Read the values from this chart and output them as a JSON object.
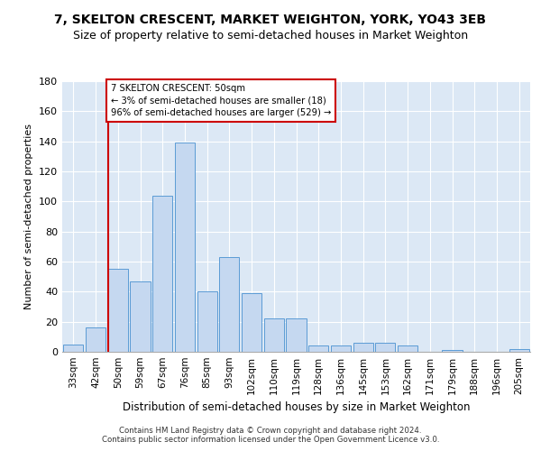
{
  "title": "7, SKELTON CRESCENT, MARKET WEIGHTON, YORK, YO43 3EB",
  "subtitle": "Size of property relative to semi-detached houses in Market Weighton",
  "xlabel": "Distribution of semi-detached houses by size in Market Weighton",
  "ylabel": "Number of semi-detached properties",
  "categories": [
    "33sqm",
    "42sqm",
    "50sqm",
    "59sqm",
    "67sqm",
    "76sqm",
    "85sqm",
    "93sqm",
    "102sqm",
    "110sqm",
    "119sqm",
    "128sqm",
    "136sqm",
    "145sqm",
    "153sqm",
    "162sqm",
    "171sqm",
    "179sqm",
    "188sqm",
    "196sqm",
    "205sqm"
  ],
  "values": [
    5,
    16,
    55,
    47,
    104,
    139,
    40,
    63,
    39,
    22,
    22,
    4,
    4,
    6,
    6,
    4,
    0,
    1,
    0,
    0,
    2
  ],
  "bar_color": "#c5d8f0",
  "bar_edge_color": "#5b9bd5",
  "vline_x_index": 2,
  "annotation_line1": "7 SKELTON CRESCENT: 50sqm",
  "annotation_line2": "← 3% of semi-detached houses are smaller (18)",
  "annotation_line3": "96% of semi-detached houses are larger (529) →",
  "annotation_box_color": "#ffffff",
  "annotation_box_edge": "#cc0000",
  "vline_color": "#cc0000",
  "ylim": [
    0,
    180
  ],
  "yticks": [
    0,
    20,
    40,
    60,
    80,
    100,
    120,
    140,
    160,
    180
  ],
  "background_color": "#dce8f5",
  "footer_line1": "Contains HM Land Registry data © Crown copyright and database right 2024.",
  "footer_line2": "Contains public sector information licensed under the Open Government Licence v3.0.",
  "title_fontsize": 10,
  "subtitle_fontsize": 9
}
